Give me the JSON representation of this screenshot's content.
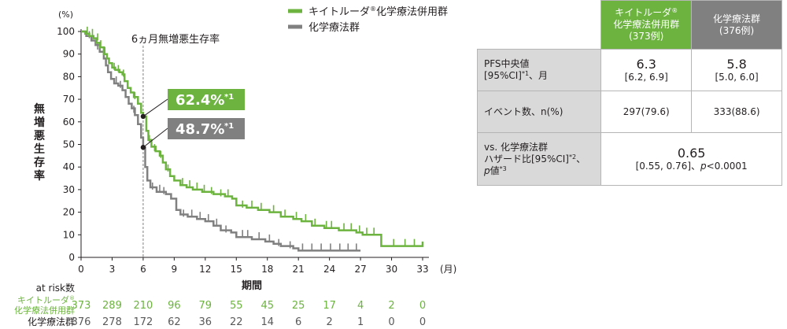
{
  "chart_data": {
    "type": "line",
    "title": "6ヵ月無増悪生存率",
    "ylabel": "無増悪生存率",
    "yunit": "(%)",
    "xlabel": "期間",
    "xunit": "(月)",
    "xlim": [
      0,
      33
    ],
    "ylim": [
      0,
      100
    ],
    "xticks": [
      0,
      3,
      6,
      9,
      12,
      15,
      18,
      21,
      24,
      27,
      30,
      33
    ],
    "yticks": [
      0,
      10,
      20,
      30,
      40,
      50,
      60,
      70,
      80,
      90,
      100
    ],
    "marker_x": 6,
    "legend": [
      {
        "name": "キイトルーダ",
        "sup": "®",
        "name2": "化学療法併用群",
        "color": "#6cb33f"
      },
      {
        "name": "化学療法群",
        "sup": "",
        "name2": "",
        "color": "#808080"
      }
    ],
    "series": [
      {
        "name": "キイトルーダ®化学療法併用群",
        "color": "#6cb33f",
        "points": [
          [
            0,
            100
          ],
          [
            0.4,
            99
          ],
          [
            0.8,
            98
          ],
          [
            1.2,
            97
          ],
          [
            1.5,
            95
          ],
          [
            1.8,
            93
          ],
          [
            2.2,
            90
          ],
          [
            2.5,
            88
          ],
          [
            2.7,
            86
          ],
          [
            3,
            84
          ],
          [
            3.3,
            83
          ],
          [
            3.7,
            82
          ],
          [
            4,
            81
          ],
          [
            4.2,
            78
          ],
          [
            4.5,
            75
          ],
          [
            4.8,
            73
          ],
          [
            5.1,
            71
          ],
          [
            5.5,
            68
          ],
          [
            5.8,
            64
          ],
          [
            6,
            62.4
          ],
          [
            6.3,
            56
          ],
          [
            6.5,
            52
          ],
          [
            6.8,
            49
          ],
          [
            7.2,
            47
          ],
          [
            7.6,
            45
          ],
          [
            7.9,
            42
          ],
          [
            8.2,
            39
          ],
          [
            8.6,
            36
          ],
          [
            9,
            34
          ],
          [
            9.6,
            32
          ],
          [
            10.2,
            31
          ],
          [
            10.8,
            30
          ],
          [
            11.7,
            29
          ],
          [
            12.8,
            28
          ],
          [
            13.9,
            27
          ],
          [
            14.6,
            26
          ],
          [
            15,
            23
          ],
          [
            16,
            22
          ],
          [
            17.1,
            21
          ],
          [
            18.2,
            20
          ],
          [
            19.3,
            18
          ],
          [
            20.5,
            17
          ],
          [
            21.3,
            16
          ],
          [
            22.3,
            14
          ],
          [
            23.5,
            13
          ],
          [
            24.9,
            12
          ],
          [
            26.6,
            11
          ],
          [
            27.2,
            10
          ],
          [
            29,
            10
          ],
          [
            29,
            5
          ],
          [
            33,
            5
          ],
          [
            33,
            7
          ]
        ],
        "ticks": [
          [
            0.6,
            99
          ],
          [
            1.1,
            98
          ],
          [
            1.6,
            96
          ],
          [
            1.9,
            93
          ],
          [
            2.3,
            90
          ],
          [
            3.2,
            83
          ],
          [
            3.6,
            82
          ],
          [
            4.1,
            80
          ],
          [
            5.2,
            70
          ],
          [
            6.6,
            51
          ],
          [
            7.1,
            47
          ],
          [
            7.7,
            44
          ],
          [
            8.4,
            38
          ],
          [
            9.8,
            32
          ],
          [
            10.5,
            31
          ],
          [
            11.2,
            30
          ],
          [
            11.9,
            29
          ],
          [
            12.6,
            28
          ],
          [
            13.5,
            27
          ],
          [
            14.2,
            27
          ],
          [
            15.6,
            22
          ],
          [
            16.5,
            22
          ],
          [
            17.4,
            21
          ],
          [
            18.6,
            20
          ],
          [
            19.7,
            18
          ],
          [
            20.8,
            17
          ],
          [
            21.7,
            16
          ],
          [
            22.6,
            14
          ],
          [
            23.7,
            13
          ],
          [
            24.2,
            13
          ],
          [
            25.4,
            12
          ],
          [
            26.1,
            12
          ],
          [
            26.9,
            11
          ],
          [
            27.6,
            10
          ],
          [
            28.3,
            10
          ],
          [
            30.2,
            5
          ],
          [
            31.3,
            5
          ],
          [
            32.2,
            5
          ]
        ],
        "at6": 62.4,
        "label": "62.4%",
        "label_sup": "*1"
      },
      {
        "name": "化学療法群",
        "color": "#808080",
        "points": [
          [
            0,
            100
          ],
          [
            0.5,
            98
          ],
          [
            1,
            96
          ],
          [
            1.4,
            94
          ],
          [
            1.8,
            91
          ],
          [
            2.2,
            88
          ],
          [
            2.4,
            85
          ],
          [
            2.6,
            82
          ],
          [
            2.9,
            79
          ],
          [
            3.2,
            77
          ],
          [
            3.6,
            76
          ],
          [
            4,
            74
          ],
          [
            4.3,
            71
          ],
          [
            4.6,
            68
          ],
          [
            4.9,
            66
          ],
          [
            5.2,
            63
          ],
          [
            5.5,
            59
          ],
          [
            5.8,
            53
          ],
          [
            6,
            48.7
          ],
          [
            6.2,
            40
          ],
          [
            6.4,
            34
          ],
          [
            6.7,
            31
          ],
          [
            7.3,
            29
          ],
          [
            8.2,
            28
          ],
          [
            8.7,
            26
          ],
          [
            9.2,
            21
          ],
          [
            9.6,
            19
          ],
          [
            10.3,
            18
          ],
          [
            11.2,
            17
          ],
          [
            12,
            16
          ],
          [
            12.8,
            14
          ],
          [
            13.5,
            12
          ],
          [
            14.5,
            11
          ],
          [
            15,
            9
          ],
          [
            16.5,
            8
          ],
          [
            17.8,
            7
          ],
          [
            18.6,
            6
          ],
          [
            19.3,
            5
          ],
          [
            20.5,
            4
          ],
          [
            21,
            3
          ],
          [
            27,
            3
          ]
        ],
        "ticks": [
          [
            0.8,
            97
          ],
          [
            1.6,
            92
          ],
          [
            3.4,
            77
          ],
          [
            3.8,
            75
          ],
          [
            5.1,
            64
          ],
          [
            6.9,
            30
          ],
          [
            7.6,
            29
          ],
          [
            8,
            28
          ],
          [
            9.9,
            18
          ],
          [
            10.7,
            18
          ],
          [
            11.5,
            17
          ],
          [
            12.3,
            16
          ],
          [
            13.1,
            14
          ],
          [
            14,
            11
          ],
          [
            15.6,
            9
          ],
          [
            16.1,
            9
          ],
          [
            17.2,
            8
          ],
          [
            18.2,
            7
          ],
          [
            19.1,
            5
          ],
          [
            20.2,
            4
          ],
          [
            21.4,
            3
          ],
          [
            22.3,
            3
          ],
          [
            23.2,
            3
          ],
          [
            24.1,
            3
          ],
          [
            25,
            3
          ],
          [
            25.8,
            3
          ],
          [
            26.6,
            3
          ]
        ],
        "at6": 48.7,
        "label": "48.7%",
        "label_sup": "*1"
      }
    ],
    "at_risk": {
      "label": "at risk数",
      "rows": [
        {
          "name": "キイトルーダ",
          "sup": "®",
          "name2": "化学療法併用群",
          "color": "#6cb33f",
          "values": [
            373,
            289,
            210,
            96,
            79,
            55,
            45,
            25,
            17,
            4,
            2,
            0
          ]
        },
        {
          "name": "化学療法群",
          "sup": "",
          "name2": "",
          "color": "#808080",
          "values": [
            376,
            278,
            172,
            62,
            36,
            22,
            14,
            6,
            2,
            1,
            0,
            0
          ]
        }
      ]
    }
  },
  "table": {
    "head": {
      "keytruda": {
        "l1": "キイトルーダ",
        "l1_sup": "®",
        "l2": "化学療法併用群",
        "l3": "(373例)"
      },
      "chemo": {
        "l1": "化学療法群",
        "l2": "(376例)"
      }
    },
    "rows": {
      "pfs": {
        "label": "PFS中央値",
        "label2a": "[95%CI]",
        "label2sup": "*1",
        "label2b": "、月",
        "k_val": "6.3",
        "k_ci": "[6.2, 6.9]",
        "c_val": "5.8",
        "c_ci": "[5.0, 6.0]"
      },
      "events": {
        "label": "イベント数、n(%)",
        "k_val": "297(79.6)",
        "c_val": "333(88.6)"
      },
      "hr": {
        "label": "vs. 化学療法群",
        "label2a": "ハザード比[95%CI]",
        "label2sup": "*2",
        "label2b": "、",
        "label3a": "p",
        "label3b": "値",
        "label3sup": "*3",
        "value": "0.65",
        "ci": "[0.55, 0.76]、",
        "p_a": "p",
        "p_b": "<0.0001"
      }
    }
  },
  "colors": {
    "keytruda": "#6cb33f",
    "chemo": "#808080",
    "header_bg": "#d9d9d9"
  }
}
